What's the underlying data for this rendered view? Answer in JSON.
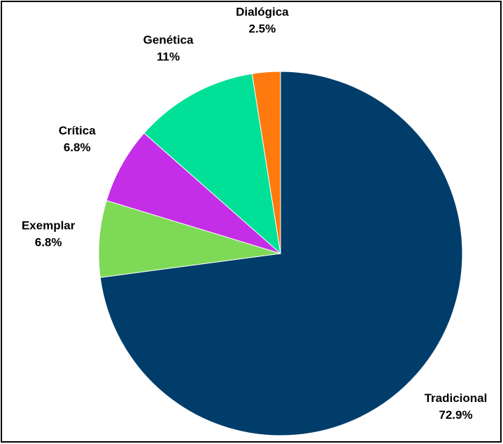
{
  "chart_data": {
    "type": "pie",
    "categories": [
      "Tradicional",
      "Exemplar",
      "Crítica",
      "Genética",
      "Dialógica"
    ],
    "values": [
      72.9,
      6.8,
      6.8,
      11,
      2.5
    ],
    "value_labels": [
      "72.9%",
      "6.8%",
      "6.8%",
      "11%",
      "2.5%"
    ],
    "colors": [
      "#003d6b",
      "#7ed957",
      "#c42ee6",
      "#00e096",
      "#ff7a0e"
    ]
  }
}
